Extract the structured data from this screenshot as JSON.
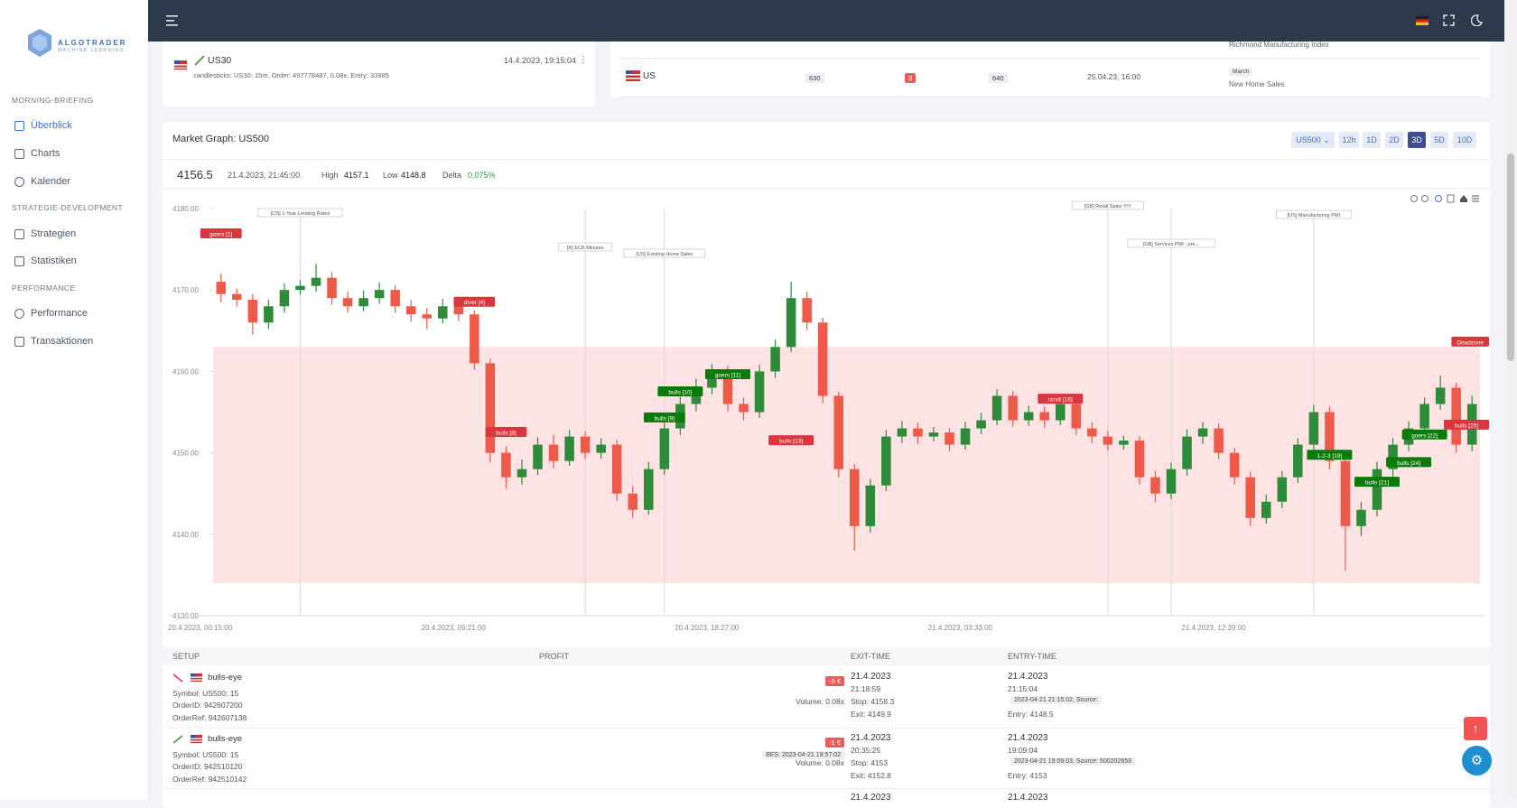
{
  "sidebar": {
    "logo": "ALGOTRADER",
    "logo_sub": "MACHINE LEARNING",
    "sections": [
      {
        "title": "MORNING-BRIEFING",
        "items": [
          "Überblick",
          "Charts",
          "Kalender"
        ]
      },
      {
        "title": "STRATEGIE-DEVELOPMENT",
        "items": [
          "Strategien",
          "Statistiken"
        ]
      },
      {
        "title": "PERFORMANCE",
        "items": [
          "Performance",
          "Transaktionen"
        ]
      }
    ]
  },
  "signal_card": {
    "symbol": "US30",
    "time": "14.4.2023, 19:15:04",
    "details": "candlesticks: US30: 15m, Order: 497778487, 0.08x, Entry: 33985"
  },
  "calendar_card": {
    "prev_event": "Richmond Manufacturing Index",
    "row": {
      "country": "US",
      "actual": "630",
      "deviation": "3",
      "forecast": "640",
      "time": "25.04.23, 16:00",
      "period": "March",
      "event": "New Home Sales"
    }
  },
  "market_graph": {
    "symbol_select": "US500",
    "ranges": [
      "12h",
      "1D",
      "2D",
      "3D",
      "5D",
      "10D"
    ],
    "stats": {
      "price": "4156.5",
      "time": "21.4.2023, 21:45:00",
      "high_label": "High",
      "high": "4157.1",
      "low_label": "Low",
      "low": "4148.8",
      "delta_label": "Delta",
      "delta": "0.075%"
    }
  },
  "chart_data": {
    "type": "candlestick",
    "title": "Market Graph: US500",
    "ylim": [
      4130,
      4180
    ],
    "yticks": [
      {
        "value": 4130,
        "label": "4130.00"
      },
      {
        "value": 4140,
        "label": "4140.00"
      },
      {
        "value": 4150,
        "label": "4150.00"
      },
      {
        "value": 4160,
        "label": "4160.00"
      },
      {
        "value": 4170,
        "label": "4170.00"
      },
      {
        "value": 4180,
        "label": "4180.00"
      }
    ],
    "x_labels": [
      "20.4.2023, 00:15:00",
      "20.4.2023, 09:21:00",
      "20.4.2023, 18:27:00",
      "21.4.2023, 03:33:00",
      "21.4.2023, 12:39:00"
    ],
    "up_color": "#2e8b3a",
    "down_color": "#ee5a4a",
    "zone": [
      4134,
      4163
    ],
    "zone_color": "#fde3e3",
    "candles": [
      [
        4171,
        4172,
        4168.5,
        4169.5
      ],
      [
        4169.5,
        4170.2,
        4168,
        4168.8
      ],
      [
        4168.8,
        4169.5,
        4164.5,
        4166
      ],
      [
        4166,
        4168.8,
        4165.2,
        4168
      ],
      [
        4168,
        4170.8,
        4167.2,
        4170
      ],
      [
        4170,
        4171.2,
        4169.4,
        4170.5
      ],
      [
        4170.5,
        4173.2,
        4169.8,
        4171.5
      ],
      [
        4171.5,
        4172.2,
        4168.2,
        4169
      ],
      [
        4169,
        4169.8,
        4167.2,
        4168
      ],
      [
        4168,
        4169.9,
        4167.4,
        4169
      ],
      [
        4169,
        4170.9,
        4168.3,
        4170
      ],
      [
        4170,
        4170.6,
        4167.2,
        4168
      ],
      [
        4168,
        4168.8,
        4166.1,
        4167
      ],
      [
        4167,
        4167.8,
        4165.2,
        4166.5
      ],
      [
        4166.5,
        4168.9,
        4165.9,
        4168
      ],
      [
        4168,
        4168.7,
        4166.2,
        4167
      ],
      [
        4167,
        4167.5,
        4160.2,
        4161
      ],
      [
        4161,
        4161.6,
        4148.8,
        4150
      ],
      [
        4150,
        4150.8,
        4145.6,
        4147
      ],
      [
        4147,
        4149.2,
        4146.1,
        4148
      ],
      [
        4148,
        4151.9,
        4147.3,
        4151
      ],
      [
        4151,
        4152.2,
        4148.1,
        4149
      ],
      [
        4149,
        4152.8,
        4148.4,
        4152
      ],
      [
        4152,
        4152.6,
        4149.2,
        4150
      ],
      [
        4150,
        4151.8,
        4149.3,
        4151
      ],
      [
        4151,
        4151.6,
        4144.1,
        4145
      ],
      [
        4145,
        4145.9,
        4142,
        4143
      ],
      [
        4143,
        4148.9,
        4142.4,
        4148
      ],
      [
        4148,
        4153.7,
        4147.3,
        4153
      ],
      [
        4153,
        4156.9,
        4152.2,
        4156
      ],
      [
        4156,
        4159.1,
        4155.1,
        4158
      ],
      [
        4158,
        4160.9,
        4157.2,
        4160
      ],
      [
        4160,
        4160.7,
        4155.1,
        4156
      ],
      [
        4156,
        4156.8,
        4154,
        4155
      ],
      [
        4155,
        4160.8,
        4154.3,
        4160
      ],
      [
        4160,
        4163.9,
        4159.2,
        4163
      ],
      [
        4163,
        4171,
        4162.4,
        4169
      ],
      [
        4169,
        4169.8,
        4165.1,
        4166
      ],
      [
        4166,
        4166.6,
        4156.1,
        4157
      ],
      [
        4157,
        4157.5,
        4147,
        4148
      ],
      [
        4148,
        4148.6,
        4138,
        4141
      ],
      [
        4141,
        4146.8,
        4140.2,
        4146
      ],
      [
        4146,
        4152.8,
        4145.3,
        4152
      ],
      [
        4152,
        4153.9,
        4151.2,
        4153
      ],
      [
        4153,
        4153.7,
        4151.1,
        4152
      ],
      [
        4152,
        4153.2,
        4151.4,
        4152.5
      ],
      [
        4152.5,
        4153,
        4150.2,
        4151
      ],
      [
        4151,
        4153.8,
        4150.4,
        4153
      ],
      [
        4153,
        4154.9,
        4152.3,
        4154
      ],
      [
        4154,
        4157.8,
        4153.4,
        4157
      ],
      [
        4157,
        4157.6,
        4153.2,
        4154
      ],
      [
        4154,
        4155.8,
        4153.3,
        4155
      ],
      [
        4155,
        4155.7,
        4153.1,
        4154
      ],
      [
        4154,
        4156.9,
        4153.4,
        4156
      ],
      [
        4156,
        4156.6,
        4152.2,
        4153
      ],
      [
        4153,
        4153.8,
        4151.2,
        4152
      ],
      [
        4152,
        4152.7,
        4150.3,
        4151
      ],
      [
        4151,
        4152.1,
        4150.4,
        4151.5
      ],
      [
        4151.5,
        4152,
        4146.1,
        4147
      ],
      [
        4147,
        4147.8,
        4143.9,
        4145
      ],
      [
        4145,
        4148.8,
        4144.3,
        4148
      ],
      [
        4148,
        4152.9,
        4147.2,
        4152
      ],
      [
        4152,
        4153.8,
        4151.1,
        4153
      ],
      [
        4153,
        4153.6,
        4149.2,
        4150
      ],
      [
        4150,
        4150.6,
        4146.1,
        4147
      ],
      [
        4147,
        4147.7,
        4141,
        4142
      ],
      [
        4142,
        4144.9,
        4141.3,
        4144
      ],
      [
        4144,
        4147.8,
        4143.2,
        4147
      ],
      [
        4147,
        4151.8,
        4146.3,
        4151
      ],
      [
        4151,
        4155.9,
        4150.1,
        4155
      ],
      [
        4155,
        4155.7,
        4148,
        4149
      ],
      [
        4149,
        4149.6,
        4135.5,
        4141
      ],
      [
        4141,
        4144,
        4139.8,
        4143
      ],
      [
        4143,
        4148.9,
        4142.2,
        4148
      ],
      [
        4148,
        4151.8,
        4147.1,
        4151
      ],
      [
        4151,
        4153.9,
        4150.2,
        4153
      ],
      [
        4153,
        4156.8,
        4152.1,
        4156
      ],
      [
        4156,
        4159.5,
        4155.3,
        4158
      ],
      [
        4158,
        4158.6,
        4150,
        4151
      ],
      [
        4151,
        4157,
        4150.2,
        4156
      ]
    ],
    "events": [
      {
        "label": "[CN] 1-Year Lending Rates",
        "candle": 5
      },
      {
        "label": "[R] ECB Minutes",
        "candle": 23
      },
      {
        "label": "[US] Existing Home Sales",
        "candle": 28
      },
      {
        "label": "[GB] Retail Sales Y/Y",
        "candle": 56
      },
      {
        "label": "[GB] Services PMI - pre...",
        "candle": 60
      },
      {
        "label": "[US] Manufacturing PMI",
        "candle": 69
      }
    ],
    "annotations": [
      {
        "label": "goers [1]",
        "candle": 0,
        "price": 4176.9,
        "color": "#d9363e"
      },
      {
        "label": "diver [4]",
        "candle": 16,
        "price": 4168.5,
        "color": "#d9363e"
      },
      {
        "label": "bulls [8]",
        "candle": 18,
        "price": 4152.5,
        "color": "#d9363e"
      },
      {
        "label": "bulls [9]",
        "candle": 28,
        "price": 4154.3,
        "color": "#0a7a0a"
      },
      {
        "label": "bulls [10]",
        "candle": 29,
        "price": 4157.5,
        "color": "#0a7a0a"
      },
      {
        "label": "goers [11]",
        "candle": 32,
        "price": 4159.6,
        "color": "#0a7a0a"
      },
      {
        "label": "bulls [13]",
        "candle": 36,
        "price": 4151.5,
        "color": "#d9363e"
      },
      {
        "label": "randi [16]",
        "candle": 53,
        "price": 4156.6,
        "color": "#d9363e"
      },
      {
        "label": "1-2-3 [19]",
        "candle": 70,
        "price": 4149.7,
        "color": "#0a7a0a"
      },
      {
        "label": "bulls [21]",
        "candle": 73,
        "price": 4146.4,
        "color": "#0a7a0a"
      },
      {
        "label": "bulls [24]",
        "candle": 75,
        "price": 4148.8,
        "color": "#0a7a0a"
      },
      {
        "label": "goers [22]",
        "candle": 76,
        "price": 4152.2,
        "color": "#0a7a0a"
      },
      {
        "label": "bulls [25]",
        "candle": 79,
        "price": 4153.4,
        "color": "#d9363e"
      },
      {
        "label": "Deadzone",
        "candle": 79,
        "price": 4163.6,
        "color": "#d9363e"
      }
    ]
  },
  "trades": {
    "columns": [
      "SETUP",
      "PROFIT",
      "EXIT-TIME",
      "ENTRY-TIME"
    ],
    "rows": [
      {
        "setup": "bulls-eye",
        "symbol": "Symbol: US500: 15",
        "order_id": "OrderID: 942607200",
        "order_ref": "OrderRef: 942607138",
        "profit": "-5 €",
        "volume": "Volume: 0.08x",
        "exit_date": "21.4.2023",
        "exit_time": "21:18:59",
        "stop": "Stop: 4158.3",
        "exit": "Exit: 4149.9",
        "entry_date": "21.4.2023",
        "entry_time": "21:15:04",
        "source": "2023-04-21 21:15:02, Source:",
        "entry": "Entry: 4148.5"
      },
      {
        "setup": "bulls-eye",
        "symbol": "Symbol: US500: 15",
        "order_id": "OrderID: 942510120",
        "order_ref": "OrderRef: 942510142",
        "profit": "-1 €",
        "bes": "BES: 2023-04-21 19:57:02",
        "volume": "Volume: 0.08x",
        "exit_date": "21.4.2023",
        "exit_time": "20:35:25",
        "stop": "Stop: 4153",
        "exit": "Exit: 4152.8",
        "entry_date": "21.4.2023",
        "entry_time": "19:09:04",
        "source": "2023-04-21 19:09:03, Source: 500202659",
        "entry": "Entry: 4153"
      },
      {
        "exit_date": "21.4.2023",
        "entry_date": "21.4.2023"
      }
    ]
  }
}
